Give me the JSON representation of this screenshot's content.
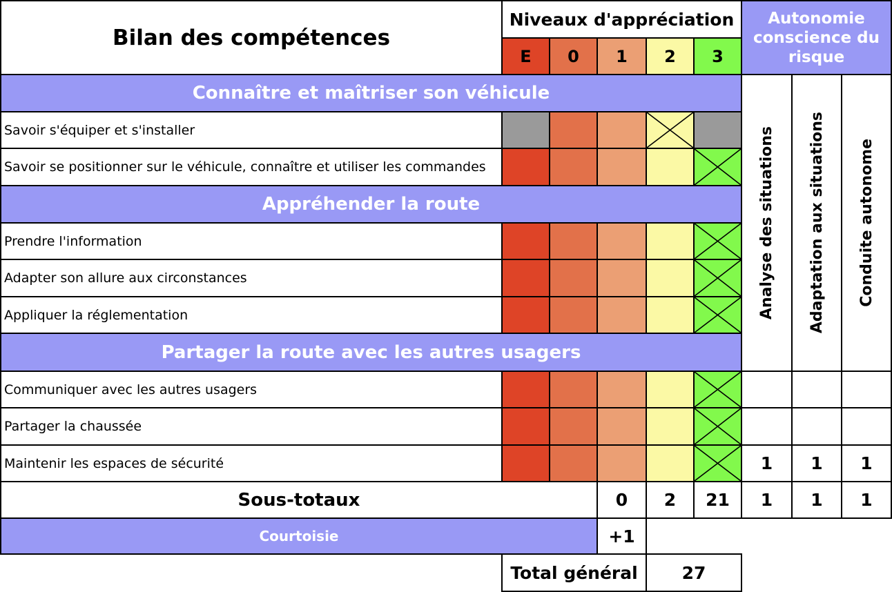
{
  "title": "Bilan des compétences",
  "levels_header": "Niveaux d'appréciation",
  "levels": [
    "E",
    "0",
    "1",
    "2",
    "3"
  ],
  "level_colors": [
    "#de4427",
    "#e2714a",
    "#eb9f74",
    "#fbf9a5",
    "#82f94c"
  ],
  "na_color": "#9a9a9a",
  "autonomy_header": "Autonomie conscience du risque",
  "autonomy_columns": [
    "Analyse des situations",
    "Adaptation aux situations",
    "Conduite autonome"
  ],
  "sections": [
    {
      "title": "Connaître et maîtriser son véhicule"
    },
    {
      "title": "Appréhender la route"
    },
    {
      "title": "Partager la route avec les autres usagers"
    }
  ],
  "rows": [
    {
      "label": "Savoir s'équiper et s'installer",
      "checked_level": "2",
      "disabled_levels": [
        "E",
        "3"
      ]
    },
    {
      "label": "Savoir se positionner sur le véhicule, connaître et utiliser les commandes",
      "checked_level": "3",
      "disabled_levels": []
    },
    {
      "label": "Prendre l'information",
      "checked_level": "3",
      "disabled_levels": []
    },
    {
      "label": "Adapter son allure aux circonstances",
      "checked_level": "3",
      "disabled_levels": []
    },
    {
      "label": "Appliquer la réglementation",
      "checked_level": "3",
      "disabled_levels": []
    },
    {
      "label": "Communiquer avec les autres usagers",
      "checked_level": "3",
      "disabled_levels": []
    },
    {
      "label": "Partager la chaussée",
      "checked_level": "3",
      "disabled_levels": []
    },
    {
      "label": "Maintenir les espaces de sécurité",
      "checked_level": "3",
      "disabled_levels": []
    }
  ],
  "autonomy_values": [
    "1",
    "1",
    "1"
  ],
  "subtotals": {
    "label": "Sous-totaux",
    "level_1": "0",
    "level_2": "2",
    "level_3": "21",
    "autonomy": [
      "1",
      "1",
      "1"
    ]
  },
  "courtesy": {
    "label": "Courtoisie",
    "value": "+1"
  },
  "total": {
    "label": "Total général",
    "value": "27"
  },
  "colors": {
    "section_bg": "#9999f5"
  }
}
